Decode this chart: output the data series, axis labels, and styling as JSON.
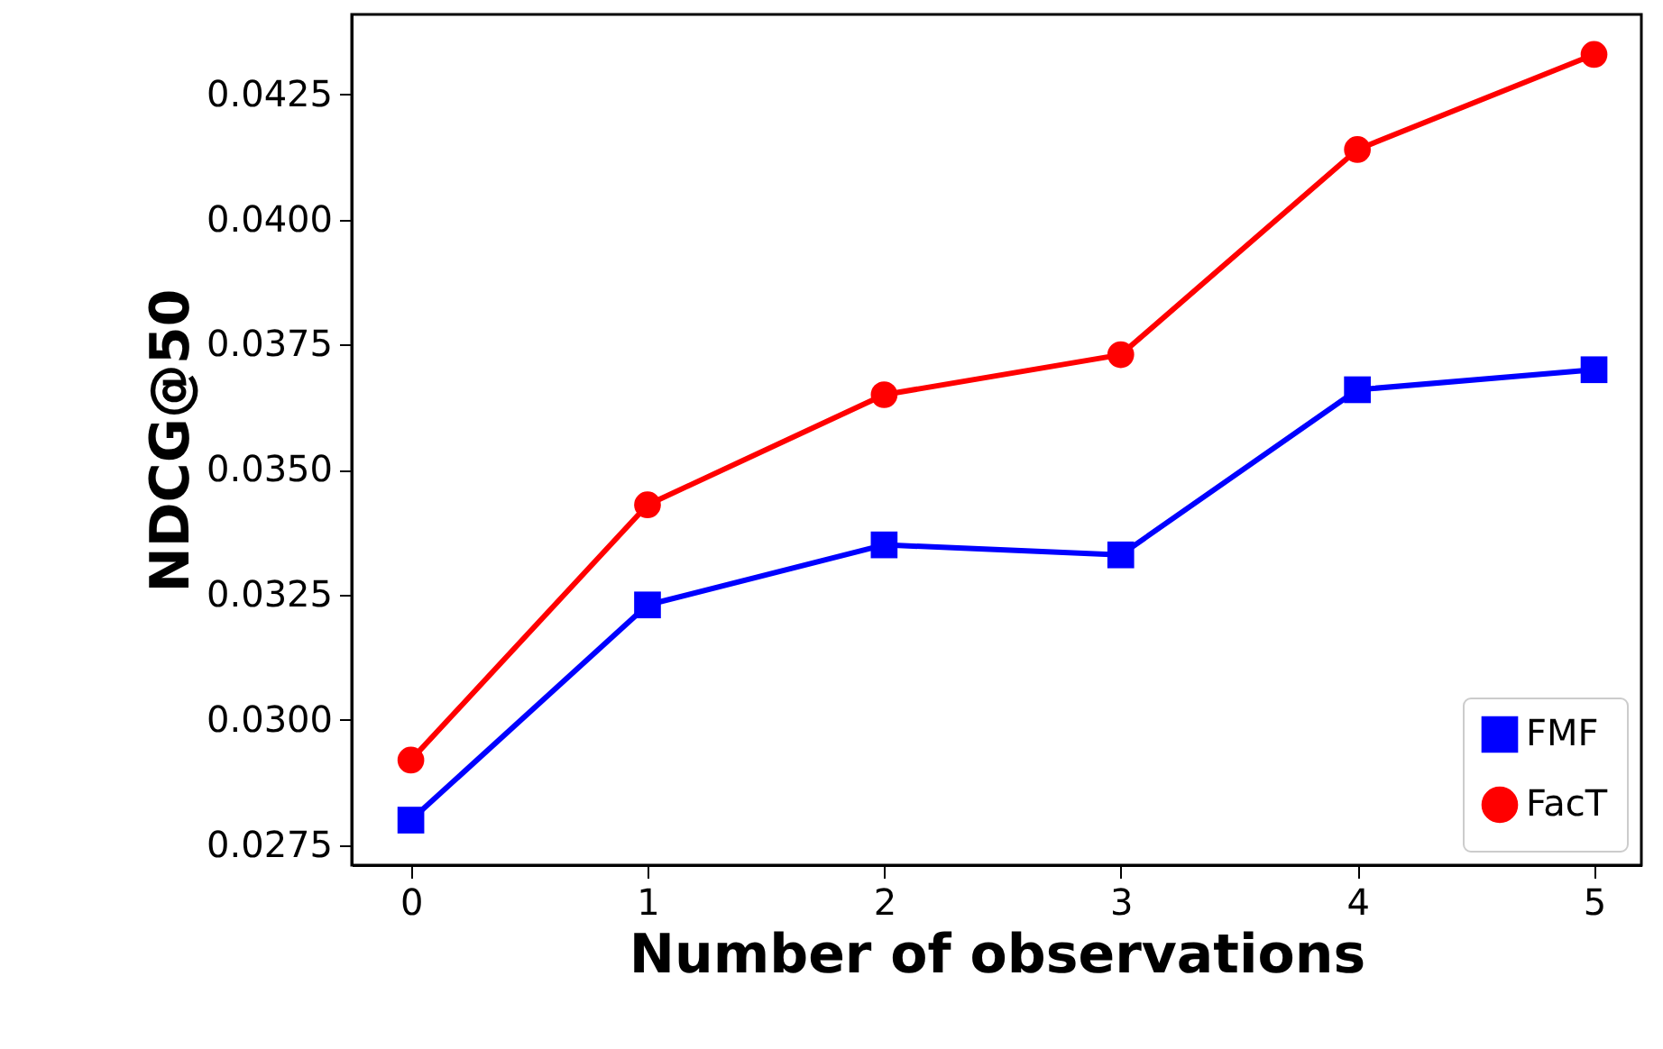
{
  "chart_data": {
    "type": "line",
    "xlabel": "Number of observations",
    "ylabel": "NDCG@50",
    "x": [
      0,
      1,
      2,
      3,
      4,
      5
    ],
    "series": [
      {
        "name": "FMF",
        "color": "#0000ff",
        "marker": "square",
        "values": [
          0.028,
          0.0323,
          0.0335,
          0.0333,
          0.0366,
          0.037
        ]
      },
      {
        "name": "FacT",
        "color": "#ff0000",
        "marker": "circle",
        "values": [
          0.0292,
          0.0343,
          0.0365,
          0.0373,
          0.0414,
          0.0433
        ]
      }
    ],
    "xlim": [
      -0.25,
      5.2
    ],
    "xticks": [
      0,
      1,
      2,
      3,
      4,
      5
    ],
    "ylim": [
      0.0271,
      0.0441
    ],
    "yticks": [
      0.0275,
      {
        "value": 0.03,
        "label": "0.0300"
      },
      0.0325,
      {
        "value": 0.035,
        "label": "0.0350"
      },
      0.0375,
      {
        "value": 0.04,
        "label": "0.0400"
      },
      0.0425
    ],
    "grid": false,
    "legend": "bottom right",
    "line_style": "solid"
  }
}
